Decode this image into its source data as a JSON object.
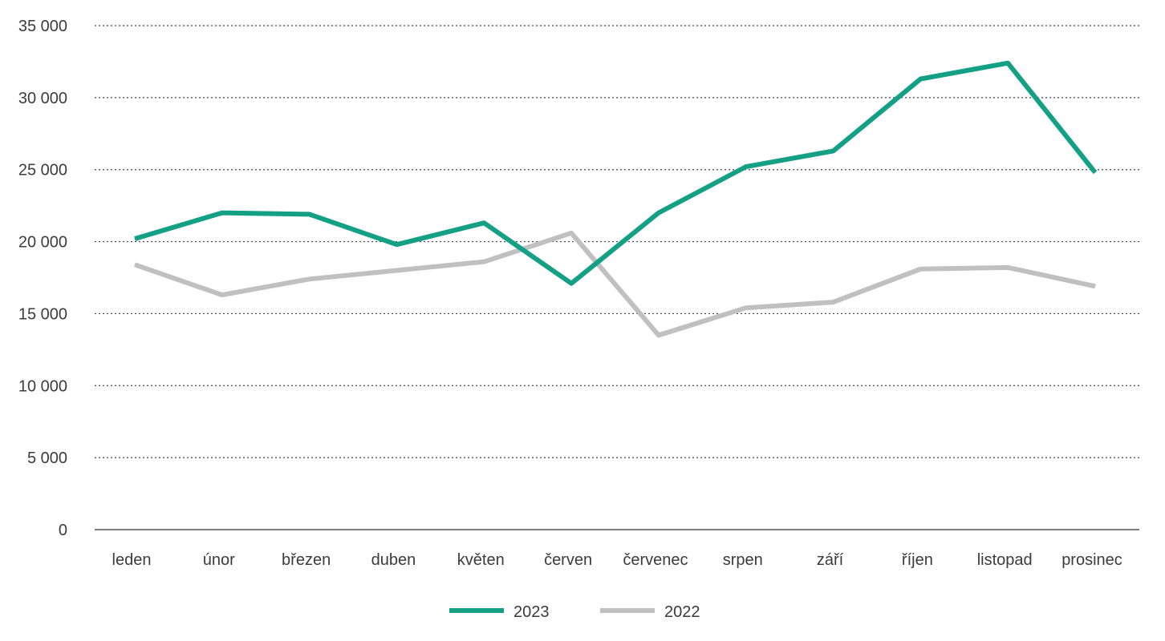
{
  "chart_data": {
    "type": "line",
    "categories": [
      "leden",
      "únor",
      "březen",
      "duben",
      "květen",
      "červen",
      "červenec",
      "srpen",
      "září",
      "říjen",
      "listopad",
      "prosinec"
    ],
    "series": [
      {
        "name": "2023",
        "color": "#14a085",
        "values": [
          20200,
          22000,
          21900,
          19800,
          21300,
          17100,
          22000,
          25200,
          26300,
          31300,
          32400,
          24800
        ]
      },
      {
        "name": "2022",
        "color": "#c0c0c0",
        "values": [
          18400,
          16300,
          17400,
          18000,
          18600,
          20600,
          13500,
          15400,
          15800,
          18100,
          18200,
          16900
        ]
      }
    ],
    "ylim": [
      0,
      35000
    ],
    "yticks": [
      0,
      5000,
      10000,
      15000,
      20000,
      25000,
      30000,
      35000
    ],
    "ytick_labels": [
      "0",
      "5 000",
      "10 000",
      "15 000",
      "20 000",
      "25 000",
      "30 000",
      "35 000"
    ],
    "grid": "horizontal-dotted",
    "legend": "bottom-center",
    "title": "",
    "xlabel": "",
    "ylabel": ""
  }
}
